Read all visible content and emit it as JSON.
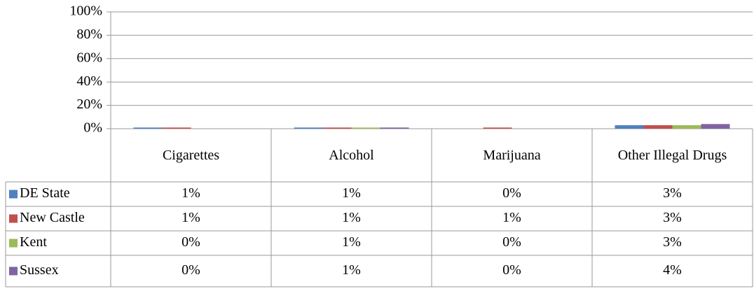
{
  "chart_data": {
    "type": "bar",
    "categories": [
      "Cigarettes",
      "Alcohol",
      "Marijuana",
      "Other Illegal Drugs"
    ],
    "series": [
      {
        "name": "DE State",
        "color": "#4f81bd",
        "values": [
          1,
          1,
          0,
          3
        ],
        "value_labels": [
          "1%",
          "1%",
          "0%",
          "3%"
        ]
      },
      {
        "name": "New Castle",
        "color": "#c0504d",
        "values": [
          1,
          1,
          1,
          3
        ],
        "value_labels": [
          "1%",
          "1%",
          "1%",
          "3%"
        ]
      },
      {
        "name": "Kent",
        "color": "#9bbb59",
        "values": [
          0,
          1,
          0,
          3
        ],
        "value_labels": [
          "0%",
          "1%",
          "0%",
          "3%"
        ]
      },
      {
        "name": "Sussex",
        "color": "#8064a2",
        "values": [
          0,
          1,
          0,
          4
        ],
        "value_labels": [
          "0%",
          "1%",
          "0%",
          "4%"
        ]
      }
    ],
    "ylim": [
      0,
      100
    ],
    "yticks": [
      {
        "value": 0,
        "label": "0%"
      },
      {
        "value": 20,
        "label": "20%"
      },
      {
        "value": 40,
        "label": "40%"
      },
      {
        "value": 60,
        "label": "60%"
      },
      {
        "value": 80,
        "label": "80%"
      },
      {
        "value": 100,
        "label": "100%"
      }
    ],
    "grid": true
  }
}
